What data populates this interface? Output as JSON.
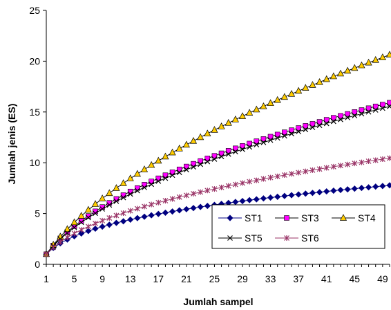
{
  "chart_data": {
    "type": "line",
    "xlabel": "Jumlah sampel",
    "ylabel": "Jumlah jenis (ES)",
    "xlim": [
      1,
      50
    ],
    "ylim": [
      0,
      25
    ],
    "x_ticks": [
      1,
      5,
      9,
      13,
      17,
      21,
      25,
      29,
      33,
      37,
      41,
      45,
      49
    ],
    "y_ticks": [
      0,
      5,
      10,
      15,
      20,
      25
    ],
    "grid": false,
    "legend_position": "bottom-right inside plot",
    "x": [
      1,
      2,
      3,
      4,
      5,
      6,
      7,
      8,
      9,
      10,
      11,
      12,
      13,
      14,
      15,
      16,
      17,
      18,
      19,
      20,
      21,
      22,
      23,
      24,
      25,
      26,
      27,
      28,
      29,
      30,
      31,
      32,
      33,
      34,
      35,
      36,
      37,
      38,
      39,
      40,
      41,
      42,
      43,
      44,
      45,
      46,
      47,
      48,
      49,
      50
    ],
    "series": [
      {
        "name": "ST1",
        "color": "#000080",
        "marker": "diamond",
        "values": [
          1.0,
          1.61,
          2.07,
          2.44,
          2.76,
          3.04,
          3.28,
          3.51,
          3.71,
          3.9,
          4.08,
          4.24,
          4.4,
          4.55,
          4.69,
          4.83,
          4.96,
          5.08,
          5.2,
          5.32,
          5.43,
          5.54,
          5.65,
          5.75,
          5.85,
          5.95,
          6.04,
          6.14,
          6.23,
          6.32,
          6.4,
          6.49,
          6.57,
          6.65,
          6.73,
          6.81,
          6.88,
          6.96,
          7.03,
          7.1,
          7.18,
          7.25,
          7.32,
          7.38,
          7.45,
          7.52,
          7.58,
          7.65,
          7.71,
          7.78
        ]
      },
      {
        "name": "ST3",
        "color": "#FF00FF",
        "marker": "square",
        "values": [
          1.0,
          1.85,
          2.56,
          3.19,
          3.76,
          4.28,
          4.76,
          5.22,
          5.64,
          6.05,
          6.44,
          6.81,
          7.17,
          7.51,
          7.84,
          8.16,
          8.47,
          8.77,
          9.06,
          9.35,
          9.63,
          9.9,
          10.17,
          10.43,
          10.68,
          10.93,
          11.18,
          11.42,
          11.66,
          11.89,
          12.12,
          12.34,
          12.57,
          12.78,
          13.0,
          13.21,
          13.42,
          13.63,
          13.83,
          14.03,
          14.23,
          14.43,
          14.62,
          14.81,
          15.0,
          15.19,
          15.37,
          15.55,
          15.73,
          15.91
        ]
      },
      {
        "name": "ST4",
        "color": "#FFCC00",
        "marker": "triangle",
        "values": [
          1.0,
          1.92,
          2.72,
          3.46,
          4.13,
          4.77,
          5.36,
          5.93,
          6.48,
          7.0,
          7.5,
          7.98,
          8.45,
          8.9,
          9.34,
          9.77,
          10.19,
          10.6,
          11.0,
          11.39,
          11.77,
          12.14,
          12.51,
          12.87,
          13.22,
          13.57,
          13.91,
          14.25,
          14.58,
          14.91,
          15.23,
          15.55,
          15.86,
          16.17,
          16.47,
          16.77,
          17.07,
          17.36,
          17.65,
          17.93,
          18.22,
          18.5,
          18.77,
          19.05,
          19.32,
          19.58,
          19.85,
          20.11,
          20.37,
          20.63
        ]
      },
      {
        "name": "ST5",
        "color": "#000000",
        "marker": "x",
        "values": [
          1.0,
          1.81,
          2.49,
          3.09,
          3.63,
          4.13,
          4.6,
          5.03,
          5.45,
          5.84,
          6.21,
          6.57,
          6.92,
          7.25,
          7.57,
          7.88,
          8.19,
          8.48,
          8.77,
          9.05,
          9.32,
          9.59,
          9.85,
          10.11,
          10.36,
          10.61,
          10.85,
          11.09,
          11.32,
          11.55,
          11.78,
          12.0,
          12.22,
          12.44,
          12.65,
          12.86,
          13.07,
          13.27,
          13.48,
          13.68,
          13.87,
          14.07,
          14.26,
          14.45,
          14.64,
          14.82,
          15.01,
          15.19,
          15.37,
          15.55
        ]
      },
      {
        "name": "ST6",
        "color": "#993366",
        "marker": "star",
        "values": [
          1.0,
          1.67,
          2.2,
          2.65,
          3.04,
          3.4,
          3.72,
          4.02,
          4.3,
          4.56,
          4.81,
          5.04,
          5.27,
          5.48,
          5.69,
          5.89,
          6.08,
          6.26,
          6.44,
          6.62,
          6.79,
          6.95,
          7.11,
          7.27,
          7.42,
          7.57,
          7.72,
          7.86,
          8.0,
          8.14,
          8.27,
          8.41,
          8.54,
          8.66,
          8.79,
          8.91,
          9.03,
          9.15,
          9.27,
          9.38,
          9.5,
          9.61,
          9.72,
          9.83,
          9.94,
          10.04,
          10.15,
          10.25,
          10.35,
          10.45
        ]
      }
    ]
  }
}
